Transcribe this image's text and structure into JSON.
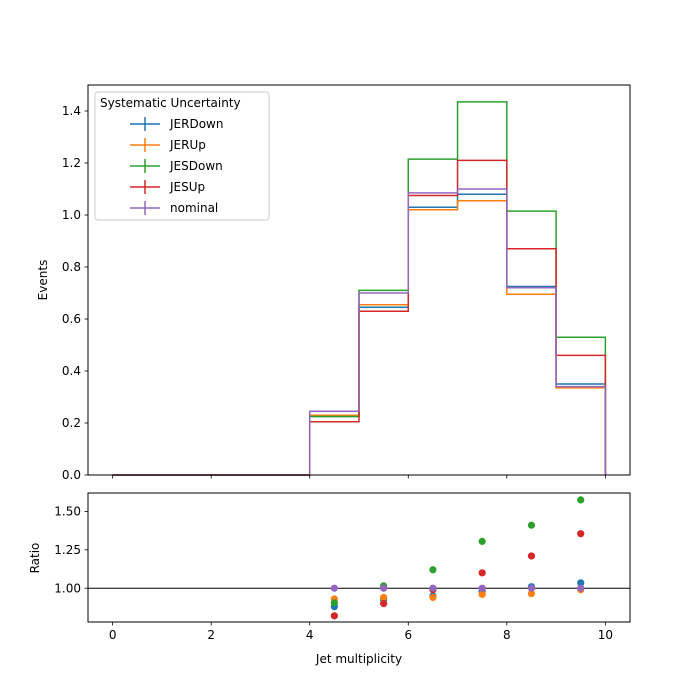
{
  "chart_data": [
    {
      "type": "line",
      "drawstyle": "step",
      "ylabel": "Events",
      "xlim": [
        -0.5,
        10.5
      ],
      "ylim": [
        0,
        1.5
      ],
      "yticks": [
        0.0,
        0.2,
        0.4,
        0.6,
        0.8,
        1.0,
        1.2,
        1.4
      ],
      "ytick_labels": [
        "0.0",
        "0.2",
        "0.4",
        "0.6",
        "0.8",
        "1.0",
        "1.2",
        "1.4"
      ],
      "bin_edges": [
        0,
        1,
        2,
        3,
        4,
        5,
        6,
        7,
        8,
        9,
        10
      ],
      "legend": {
        "title": "Systematic Uncertainty",
        "placement": "upper-left"
      },
      "series": [
        {
          "name": "JERDown",
          "color": "#1f77b4",
          "values": [
            0,
            0,
            0,
            0,
            0.225,
            0.645,
            1.03,
            1.08,
            0.725,
            0.35
          ]
        },
        {
          "name": "JERUp",
          "color": "#ff7f0e",
          "values": [
            0,
            0,
            0,
            0,
            0.23,
            0.655,
            1.02,
            1.055,
            0.695,
            0.335
          ]
        },
        {
          "name": "JESDown",
          "color": "#2ca02c",
          "values": [
            0,
            0,
            0,
            0,
            0.225,
            0.71,
            1.215,
            1.435,
            1.015,
            0.53
          ]
        },
        {
          "name": "JESUp",
          "color": "#d62728",
          "values": [
            0,
            0,
            0,
            0,
            0.205,
            0.63,
            1.075,
            1.21,
            0.87,
            0.46
          ]
        },
        {
          "name": "nominal",
          "color": "#9467bd",
          "values": [
            0,
            0,
            0,
            0,
            0.245,
            0.7,
            1.085,
            1.1,
            0.72,
            0.34
          ]
        }
      ]
    },
    {
      "type": "scatter",
      "xlabel": "Jet multiplicity",
      "ylabel": "Ratio",
      "xlim": [
        -0.5,
        10.5
      ],
      "ylim": [
        0.78,
        1.62
      ],
      "xticks": [
        0,
        2,
        4,
        6,
        8,
        10
      ],
      "xtick_labels": [
        "0",
        "2",
        "4",
        "6",
        "8",
        "10"
      ],
      "yticks": [
        1.0,
        1.25,
        1.5
      ],
      "ytick_labels": [
        "1.00",
        "1.25",
        "1.50"
      ],
      "reference_line": 1.0,
      "x": [
        4.5,
        5.5,
        6.5,
        7.5,
        8.5,
        9.5
      ],
      "series": [
        {
          "name": "JERDown",
          "color": "#1f77b4",
          "values": [
            0.88,
            0.925,
            0.95,
            0.98,
            1.01,
            1.035
          ]
        },
        {
          "name": "JERUp",
          "color": "#ff7f0e",
          "values": [
            0.93,
            0.94,
            0.94,
            0.96,
            0.965,
            0.99
          ]
        },
        {
          "name": "JESDown",
          "color": "#2ca02c",
          "values": [
            0.905,
            1.015,
            1.12,
            1.305,
            1.41,
            1.575
          ]
        },
        {
          "name": "JESUp",
          "color": "#d62728",
          "values": [
            0.82,
            0.9,
            0.99,
            1.1,
            1.21,
            1.355
          ]
        },
        {
          "name": "nominal",
          "color": "#9467bd",
          "values": [
            1.0,
            1.0,
            1.0,
            1.0,
            1.0,
            1.0
          ]
        }
      ]
    }
  ]
}
